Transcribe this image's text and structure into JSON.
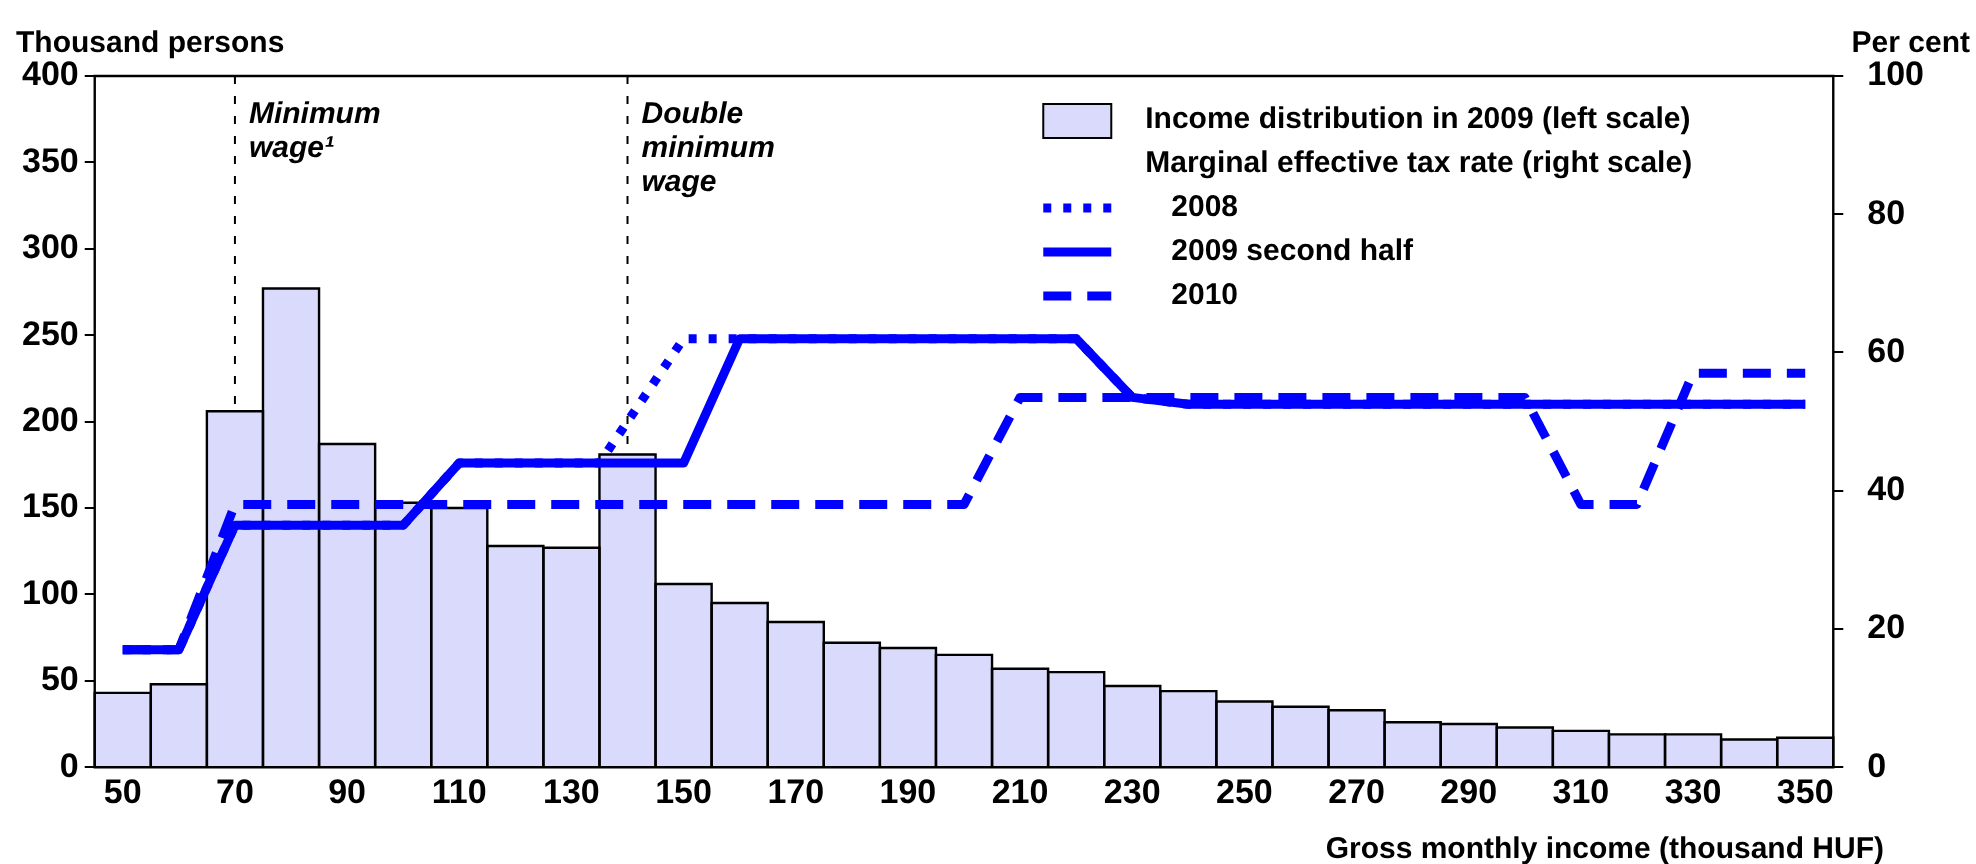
{
  "chart_data": {
    "type": "histogram",
    "ylabel": "Thousand persons",
    "y2label": "Per cent",
    "xlabel": "Gross monthly income (thousand HUF)",
    "legend_title": "Marginal effective tax rate (right scale)",
    "legend": "top right",
    "grid": false,
    "bins": [
      45,
      55,
      65,
      75,
      85,
      95,
      105,
      115,
      125,
      135,
      145,
      155,
      165,
      175,
      185,
      195,
      205,
      215,
      225,
      235,
      245,
      255,
      265,
      275,
      285,
      295,
      305,
      315,
      325,
      335,
      345,
      355
    ],
    "xlim": [
      45,
      355
    ],
    "xticks": [
      50,
      70,
      90,
      110,
      130,
      150,
      170,
      190,
      210,
      230,
      250,
      270,
      290,
      310,
      330,
      350
    ],
    "ylim": [
      0,
      400
    ],
    "yticks": [
      0,
      50,
      100,
      150,
      200,
      250,
      300,
      350,
      400
    ],
    "y2lim": [
      0,
      100
    ],
    "y2ticks": [
      0,
      20,
      40,
      60,
      80,
      100
    ],
    "ref_lines": [
      {
        "axis": "x",
        "value": 70,
        "label": "Minimum wage¹",
        "line_style": "dotted",
        "color": "#000000"
      },
      {
        "axis": "x",
        "value": 140,
        "label": "Double minimum wage",
        "line_style": "dotted",
        "color": "#000000"
      }
    ],
    "series": [
      {
        "type": "histogram",
        "name": "Income distribution in 2009 (left scale)",
        "color": "#d9dafc",
        "values": [
          43,
          48,
          206,
          277,
          187,
          153,
          150,
          128,
          127,
          181,
          106,
          95,
          84,
          72,
          69,
          65,
          57,
          55,
          47,
          44,
          38,
          35,
          33,
          26,
          25,
          23,
          21,
          19,
          19,
          16,
          17
        ]
      },
      {
        "type": "line",
        "axis": "y2",
        "name": "2008",
        "color": "#0000ff",
        "line_style": "dotted",
        "x": [
          50,
          60,
          70,
          100,
          110,
          135,
          150,
          220,
          230,
          240,
          350
        ],
        "values": [
          17,
          17,
          35,
          35,
          44,
          44,
          62,
          62,
          53.5,
          52.5,
          52.5
        ]
      },
      {
        "type": "line",
        "axis": "y2",
        "name": "2009 second half",
        "color": "#0000ff",
        "line_style": "solid",
        "x": [
          50,
          60,
          70,
          100,
          110,
          150,
          160,
          220,
          230,
          240,
          350
        ],
        "values": [
          17,
          17,
          35,
          35,
          44,
          44,
          62,
          62,
          53.5,
          52.5,
          52.5
        ]
      },
      {
        "type": "line",
        "axis": "y2",
        "name": "2010",
        "color": "#0000ff",
        "line_style": "dashed",
        "x": [
          50,
          60,
          70,
          200,
          210,
          300,
          310,
          320,
          330,
          350
        ],
        "values": [
          17,
          17,
          38,
          38,
          53.5,
          53.5,
          38,
          38,
          57,
          57
        ]
      }
    ]
  }
}
